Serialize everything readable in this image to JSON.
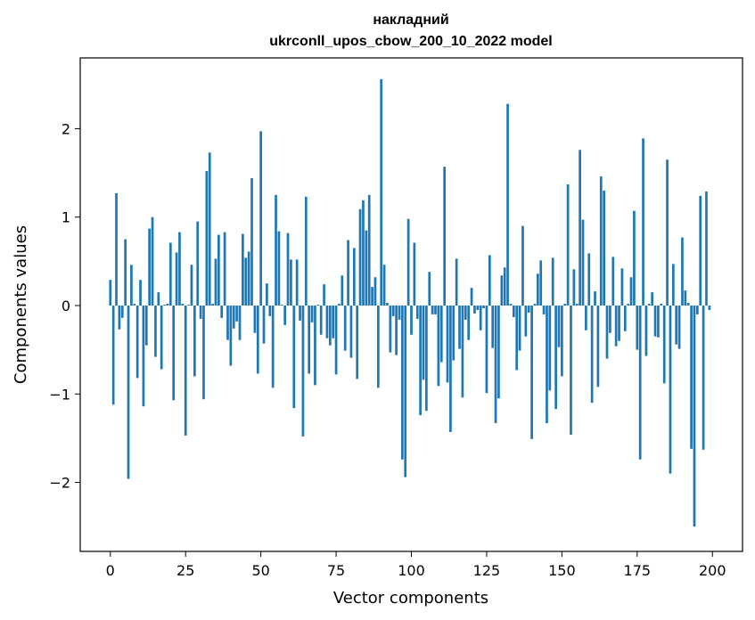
{
  "chart_data": {
    "type": "bar",
    "title_line1": "накладний",
    "title_line2": "ukrconll_upos_cbow_200_10_2022 model",
    "xlabel": "Vector components",
    "ylabel": "Components values",
    "xlim": [
      -10,
      210
    ],
    "ylim": [
      -2.78,
      2.8
    ],
    "xticks": [
      0,
      25,
      50,
      75,
      100,
      125,
      150,
      175,
      200
    ],
    "yticks": [
      -2,
      -1,
      0,
      1,
      2
    ],
    "ytick_labels": [
      "−2",
      "−1",
      "0",
      "1",
      "2"
    ],
    "bar_color": "#1f77b4",
    "grid": false,
    "x": [
      0,
      1,
      2,
      3,
      4,
      5,
      6,
      7,
      8,
      9,
      10,
      11,
      12,
      13,
      14,
      15,
      16,
      17,
      18,
      19,
      20,
      21,
      22,
      23,
      24,
      25,
      26,
      27,
      28,
      29,
      30,
      31,
      32,
      33,
      34,
      35,
      36,
      37,
      38,
      39,
      40,
      41,
      42,
      43,
      44,
      45,
      46,
      47,
      48,
      49,
      50,
      51,
      52,
      53,
      54,
      55,
      56,
      57,
      58,
      59,
      60,
      61,
      62,
      63,
      64,
      65,
      66,
      67,
      68,
      69,
      70,
      71,
      72,
      73,
      74,
      75,
      76,
      77,
      78,
      79,
      80,
      81,
      82,
      83,
      84,
      85,
      86,
      87,
      88,
      89,
      90,
      91,
      92,
      93,
      94,
      95,
      96,
      97,
      98,
      99,
      100,
      101,
      102,
      103,
      104,
      105,
      106,
      107,
      108,
      109,
      110,
      111,
      112,
      113,
      114,
      115,
      116,
      117,
      118,
      119,
      120,
      121,
      122,
      123,
      124,
      125,
      126,
      127,
      128,
      129,
      130,
      131,
      132,
      133,
      134,
      135,
      136,
      137,
      138,
      139,
      140,
      141,
      142,
      143,
      144,
      145,
      146,
      147,
      148,
      149,
      150,
      151,
      152,
      153,
      154,
      155,
      156,
      157,
      158,
      159,
      160,
      161,
      162,
      163,
      164,
      165,
      166,
      167,
      168,
      169,
      170,
      171,
      172,
      173,
      174,
      175,
      176,
      177,
      178,
      179,
      180,
      181,
      182,
      183,
      184,
      185,
      186,
      187,
      188,
      189,
      190,
      191,
      192,
      193,
      194,
      195,
      196,
      197,
      198,
      199
    ],
    "values": [
      0.29,
      -1.12,
      1.27,
      -0.27,
      -0.14,
      0.75,
      -1.96,
      0.46,
      0.02,
      -0.82,
      0.29,
      -1.14,
      -0.45,
      0.87,
      1.0,
      -0.58,
      0.15,
      -0.72,
      0.01,
      0.02,
      0.71,
      -1.07,
      0.6,
      0.83,
      0.02,
      -1.47,
      0.01,
      0.46,
      -0.8,
      0.95,
      -0.15,
      -1.06,
      1.52,
      1.73,
      0.02,
      0.53,
      0.8,
      -0.14,
      0.83,
      -0.39,
      -0.68,
      -0.26,
      -0.18,
      -0.39,
      0.81,
      0.54,
      0.61,
      1.44,
      -0.31,
      -0.77,
      1.97,
      -0.43,
      0.25,
      -0.12,
      -0.93,
      1.25,
      0.84,
      0.01,
      -0.22,
      0.82,
      0.52,
      -1.16,
      0.52,
      -0.17,
      -1.48,
      1.23,
      -0.77,
      -0.19,
      -0.9,
      0.01,
      -0.33,
      0.24,
      -0.37,
      -0.45,
      -0.37,
      -0.78,
      0.02,
      0.34,
      -0.51,
      0.74,
      -0.59,
      0.65,
      -0.83,
      1.09,
      1.19,
      0.85,
      1.25,
      0.21,
      0.32,
      -0.93,
      2.56,
      0.46,
      0.03,
      -0.53,
      -0.12,
      -0.56,
      -0.16,
      -1.74,
      -1.94,
      0.98,
      -0.33,
      0.71,
      -0.15,
      -1.24,
      -0.84,
      -1.19,
      0.38,
      -0.1,
      -0.1,
      -0.91,
      -0.64,
      1.57,
      -0.87,
      -1.43,
      -0.62,
      0.53,
      -0.49,
      -1.04,
      -0.16,
      -0.39,
      0.2,
      -0.09,
      -0.05,
      -0.28,
      -0.03,
      -0.99,
      0.57,
      -0.48,
      -1.33,
      -1.05,
      0.34,
      0.43,
      2.28,
      0.02,
      -0.13,
      -0.73,
      -0.51,
      0.9,
      -0.35,
      -0.08,
      -1.51,
      0.02,
      0.36,
      0.51,
      -0.1,
      -1.33,
      -0.96,
      0.54,
      -1.17,
      -0.47,
      -0.8,
      0.02,
      1.37,
      -1.46,
      0.41,
      0.02,
      1.76,
      0.97,
      -0.28,
      0.59,
      -1.1,
      0.16,
      -0.92,
      1.46,
      1.3,
      -0.6,
      -0.31,
      0.55,
      -0.46,
      -0.4,
      0.42,
      -0.29,
      0.02,
      0.32,
      1.07,
      -0.5,
      -1.74,
      1.89,
      -0.57,
      0.02,
      0.15,
      -0.35,
      -0.36,
      0.02,
      -0.88,
      1.65,
      -1.9,
      0.47,
      -0.44,
      -0.49,
      0.77,
      0.17,
      0.03,
      -1.62,
      -2.5,
      -0.1,
      1.24,
      -1.63,
      1.29,
      -0.05
    ]
  }
}
